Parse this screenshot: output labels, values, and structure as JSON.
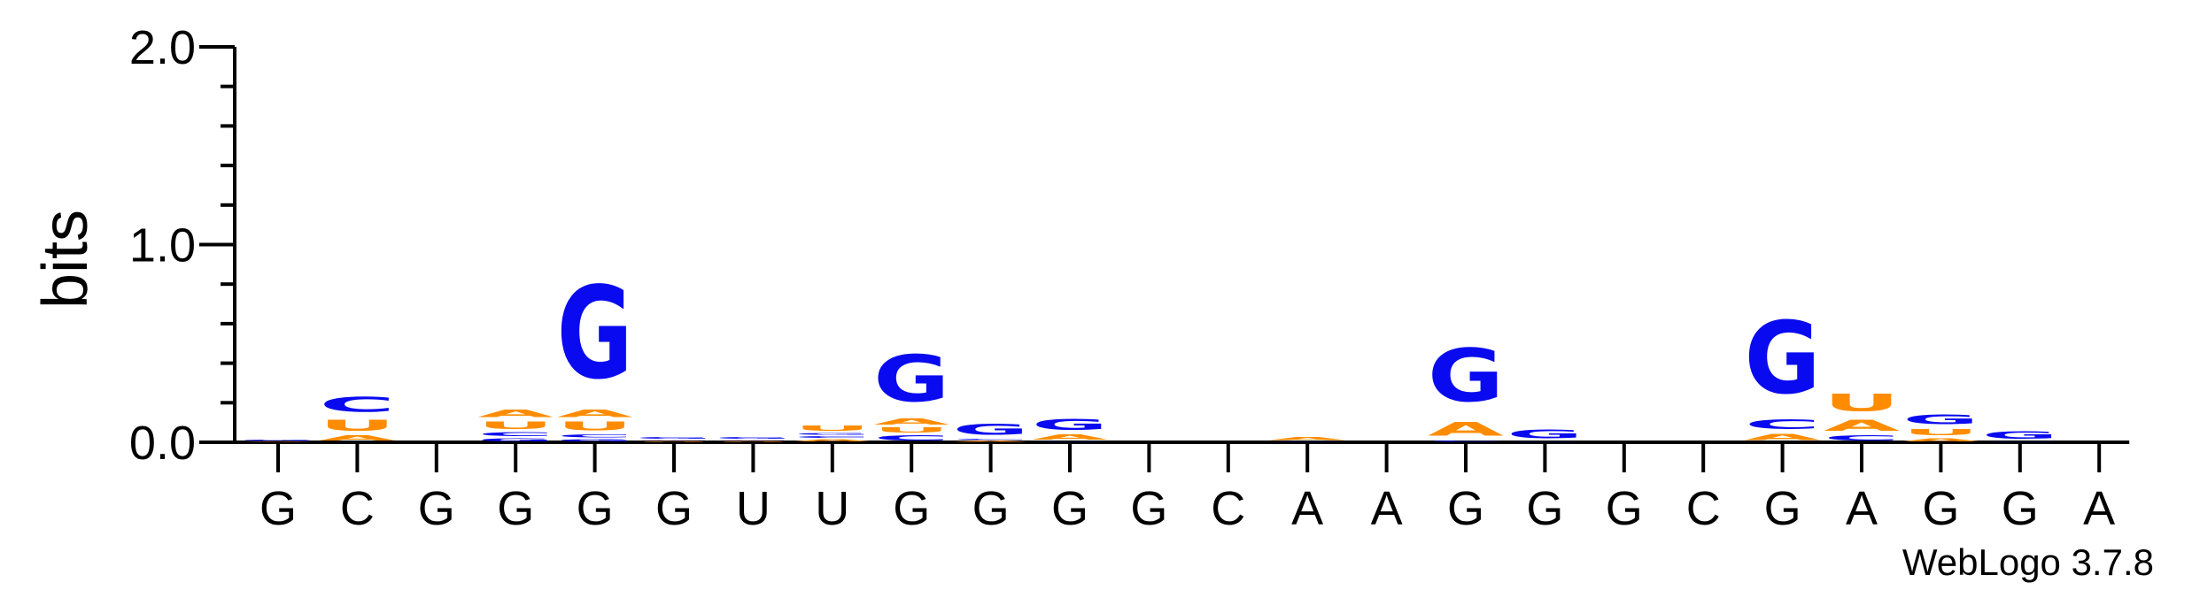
{
  "chart_data": {
    "type": "sequence-logo",
    "ylabel": "bits",
    "ylim": [
      0,
      2
    ],
    "y_ticks": [
      "0.0",
      "1.0",
      "2.0"
    ],
    "footer": "WebLogo 3.7.8",
    "colors": {
      "G": "#0a0af0",
      "C": "#0a0af0",
      "A": "#ff8c00",
      "U": "#ff8c00"
    },
    "positions": [
      {
        "label": "G",
        "stack": [
          {
            "letter": "A",
            "bits": 0.005
          },
          {
            "letter": "G",
            "bits": 0.01
          }
        ]
      },
      {
        "label": "C",
        "stack": [
          {
            "letter": "A",
            "bits": 0.04
          },
          {
            "letter": "U",
            "bits": 0.09
          },
          {
            "letter": "C",
            "bits": 0.12
          }
        ]
      },
      {
        "label": "G",
        "stack": []
      },
      {
        "label": "G",
        "stack": [
          {
            "letter": "G",
            "bits": 0.025
          },
          {
            "letter": "C",
            "bits": 0.03
          },
          {
            "letter": "U",
            "bits": 0.06
          },
          {
            "letter": "A",
            "bits": 0.06
          }
        ]
      },
      {
        "label": "G",
        "stack": [
          {
            "letter": "G",
            "bits": 0.02
          },
          {
            "letter": "C",
            "bits": 0.025
          },
          {
            "letter": "U",
            "bits": 0.07
          },
          {
            "letter": "A",
            "bits": 0.06
          },
          {
            "letter": "G",
            "bits": 0.75
          }
        ]
      },
      {
        "label": "G",
        "stack": [
          {
            "letter": "U",
            "bits": 0.005
          },
          {
            "letter": "A",
            "bits": 0.005
          },
          {
            "letter": "C",
            "bits": 0.005
          },
          {
            "letter": "G",
            "bits": 0.015
          }
        ]
      },
      {
        "label": "U",
        "stack": [
          {
            "letter": "U",
            "bits": 0.005
          },
          {
            "letter": "A",
            "bits": 0.005
          },
          {
            "letter": "C",
            "bits": 0.005
          },
          {
            "letter": "G",
            "bits": 0.015
          }
        ]
      },
      {
        "label": "U",
        "stack": [
          {
            "letter": "A",
            "bits": 0.02
          },
          {
            "letter": "C",
            "bits": 0.015
          },
          {
            "letter": "G",
            "bits": 0.015
          },
          {
            "letter": "U",
            "bits": 0.04
          }
        ]
      },
      {
        "label": "G",
        "stack": [
          {
            "letter": "C",
            "bits": 0.04
          },
          {
            "letter": "U",
            "bits": 0.04
          },
          {
            "letter": "A",
            "bits": 0.05
          },
          {
            "letter": "G",
            "bits": 0.38
          }
        ]
      },
      {
        "label": "G",
        "stack": [
          {
            "letter": "A",
            "bits": 0.01
          },
          {
            "letter": "C",
            "bits": 0.01
          },
          {
            "letter": "G",
            "bits": 0.09
          }
        ]
      },
      {
        "label": "G",
        "stack": [
          {
            "letter": "C",
            "bits": 0.005
          },
          {
            "letter": "A",
            "bits": 0.04
          },
          {
            "letter": "G",
            "bits": 0.09
          }
        ]
      },
      {
        "label": "G",
        "stack": []
      },
      {
        "label": "C",
        "stack": []
      },
      {
        "label": "A",
        "stack": [
          {
            "letter": "C",
            "bits": 0.005
          },
          {
            "letter": "A",
            "bits": 0.025
          }
        ]
      },
      {
        "label": "A",
        "stack": []
      },
      {
        "label": "G",
        "stack": [
          {
            "letter": "C",
            "bits": 0.01
          },
          {
            "letter": "A",
            "bits": 0.11
          },
          {
            "letter": "G",
            "bits": 0.43
          }
        ]
      },
      {
        "label": "G",
        "stack": [
          {
            "letter": "C",
            "bits": 0.005
          },
          {
            "letter": "G",
            "bits": 0.07
          }
        ]
      },
      {
        "label": "G",
        "stack": []
      },
      {
        "label": "C",
        "stack": []
      },
      {
        "label": "G",
        "stack": [
          {
            "letter": "A",
            "bits": 0.05
          },
          {
            "letter": "C",
            "bits": 0.08
          },
          {
            "letter": "G",
            "bits": 0.59
          }
        ]
      },
      {
        "label": "A",
        "stack": [
          {
            "letter": "C",
            "bits": 0.04
          },
          {
            "letter": "A",
            "bits": 0.09
          },
          {
            "letter": "U",
            "bits": 0.14
          }
        ]
      },
      {
        "label": "G",
        "stack": [
          {
            "letter": "A",
            "bits": 0.025
          },
          {
            "letter": "U",
            "bits": 0.05
          },
          {
            "letter": "G",
            "bits": 0.08
          }
        ]
      },
      {
        "label": "G",
        "stack": [
          {
            "letter": "C",
            "bits": 0.005
          },
          {
            "letter": "G",
            "bits": 0.06
          }
        ]
      },
      {
        "label": "A",
        "stack": []
      }
    ]
  }
}
